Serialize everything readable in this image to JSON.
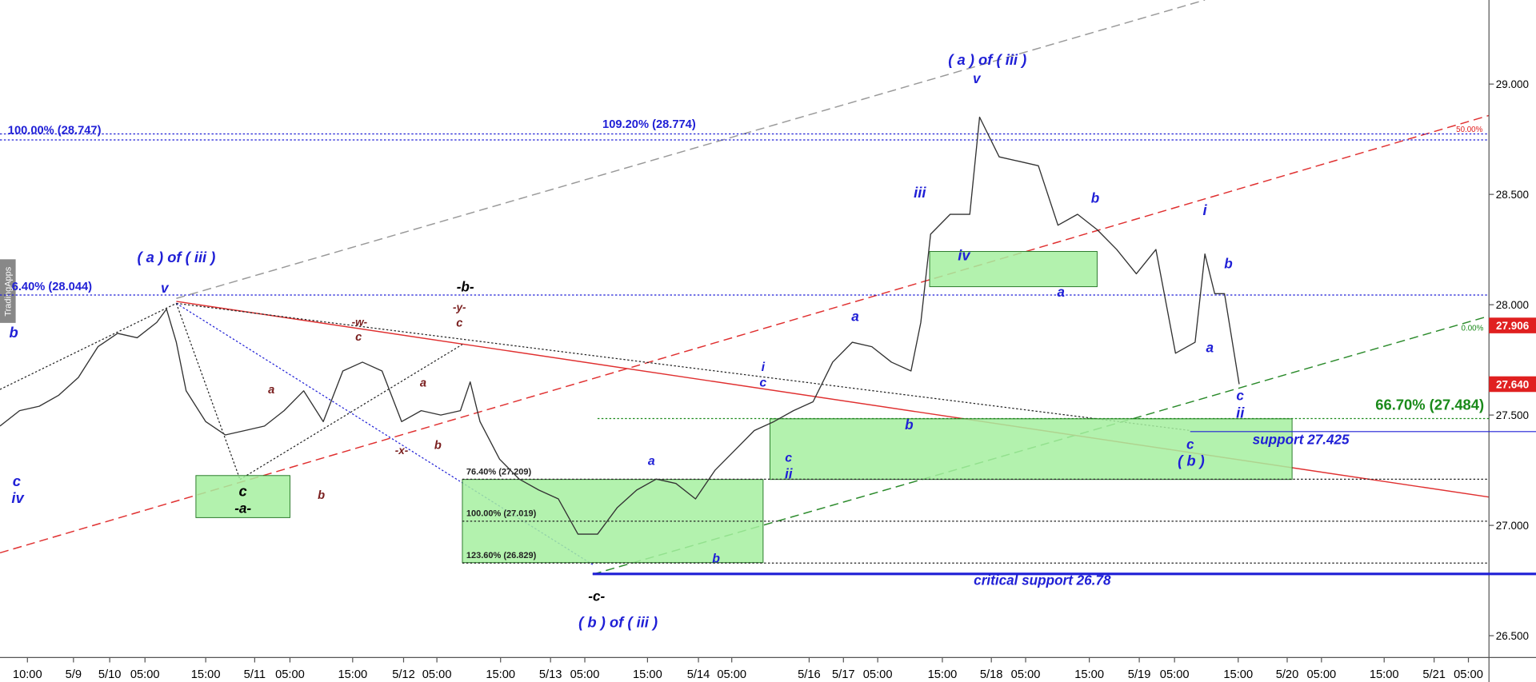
{
  "chart_data": {
    "type": "line",
    "xlim": [
      0,
      156.8
    ],
    "ylim": [
      26.401,
      29.381
    ],
    "xticks": [
      {
        "value": 2.8,
        "label": "10:00"
      },
      {
        "value": 7.5,
        "label": "5/9"
      },
      {
        "value": 11.2,
        "label": "5/10"
      },
      {
        "value": 14.8,
        "label": "05:00"
      },
      {
        "value": 21.0,
        "label": "15:00"
      },
      {
        "value": 26.0,
        "label": "5/11"
      },
      {
        "value": 29.6,
        "label": "05:00"
      },
      {
        "value": 36.0,
        "label": "15:00"
      },
      {
        "value": 41.2,
        "label": "5/12"
      },
      {
        "value": 44.6,
        "label": "05:00"
      },
      {
        "value": 51.1,
        "label": "15:00"
      },
      {
        "value": 56.2,
        "label": "5/13"
      },
      {
        "value": 59.7,
        "label": "05:00"
      },
      {
        "value": 66.1,
        "label": "15:00"
      },
      {
        "value": 71.3,
        "label": "5/14"
      },
      {
        "value": 74.7,
        "label": "05:00"
      },
      {
        "value": 82.6,
        "label": "5/16"
      },
      {
        "value": 86.1,
        "label": "5/17"
      },
      {
        "value": 89.6,
        "label": "05:00"
      },
      {
        "value": 96.2,
        "label": "15:00"
      },
      {
        "value": 101.2,
        "label": "5/18"
      },
      {
        "value": 104.7,
        "label": "05:00"
      },
      {
        "value": 111.2,
        "label": "15:00"
      },
      {
        "value": 116.3,
        "label": "5/19"
      },
      {
        "value": 119.9,
        "label": "05:00"
      },
      {
        "value": 126.4,
        "label": "15:00"
      },
      {
        "value": 131.4,
        "label": "5/20"
      },
      {
        "value": 134.9,
        "label": "05:00"
      },
      {
        "value": 141.3,
        "label": "15:00"
      },
      {
        "value": 146.4,
        "label": "5/21"
      },
      {
        "value": 149.9,
        "label": "05:00"
      }
    ],
    "yticks": [
      {
        "value": 26.5,
        "label": "26.500"
      },
      {
        "value": 27,
        "label": "27.000"
      },
      {
        "value": 27.5,
        "label": "27.500"
      },
      {
        "value": 28,
        "label": "28.000"
      },
      {
        "value": 28.5,
        "label": "28.500"
      },
      {
        "value": 29,
        "label": "29.000"
      }
    ],
    "series": [
      {
        "color": "#333333",
        "x": [
          0,
          2,
          4,
          6,
          8,
          10,
          12,
          14,
          16,
          17,
          18,
          19,
          21,
          23,
          25,
          27,
          29,
          31,
          33,
          35,
          37,
          39,
          41,
          43,
          45,
          47,
          48,
          49,
          51,
          53,
          55,
          57,
          59,
          61,
          63,
          65,
          67,
          69,
          71,
          73,
          75,
          77,
          79,
          81,
          83,
          85,
          87,
          89,
          91,
          93,
          94,
          95,
          97,
          99,
          100,
          102,
          104,
          106,
          108,
          110,
          112,
          114,
          116,
          118,
          120,
          122,
          123,
          124,
          125,
          126.5
        ],
        "values": [
          27.45,
          27.52,
          27.54,
          27.59,
          27.67,
          27.81,
          27.87,
          27.85,
          27.92,
          27.98,
          27.83,
          27.61,
          27.47,
          27.41,
          27.43,
          27.45,
          27.52,
          27.61,
          27.47,
          27.7,
          27.74,
          27.7,
          27.47,
          27.52,
          27.5,
          27.52,
          27.65,
          27.47,
          27.3,
          27.21,
          27.16,
          27.12,
          26.96,
          26.96,
          27.08,
          27.16,
          27.21,
          27.19,
          27.12,
          27.25,
          27.34,
          27.43,
          27.47,
          27.52,
          27.56,
          27.74,
          27.83,
          27.81,
          27.74,
          27.7,
          27.92,
          28.32,
          28.41,
          28.41,
          28.85,
          28.67,
          28.65,
          28.63,
          28.36,
          28.41,
          28.34,
          28.25,
          28.14,
          28.25,
          27.78,
          27.83,
          28.23,
          28.05,
          28.05,
          27.64
        ]
      }
    ],
    "levels": [
      {
        "label": "100.00% (28.747)",
        "value": 28.747,
        "color": "#1f1fd6"
      },
      {
        "label": "109.20% (28.774)",
        "value": 28.774,
        "color": "#1f1fd6"
      },
      {
        "label": "6.40% (28.044)",
        "value": 28.044,
        "color": "#1f1fd6"
      },
      {
        "label": "66.70% (27.484)",
        "value": 27.484,
        "color": "#1a8a1a"
      },
      {
        "label": "support 27.425",
        "value": 27.425,
        "color": "#1f1fd6"
      },
      {
        "label": "critical support 26.78",
        "value": 26.78,
        "color": "#1f1fd6"
      },
      {
        "label": "76.40% (27.209)",
        "value": 27.209,
        "color": "#222222"
      },
      {
        "label": "100.00% (27.019)",
        "value": 27.019,
        "color": "#222222"
      },
      {
        "label": "123.60% (26.829)",
        "value": 26.829,
        "color": "#222222"
      }
    ],
    "price_tags": [
      {
        "value": 27.906,
        "color": "#e02020"
      },
      {
        "value": 27.64,
        "label": "27.640",
        "color": "#e02020"
      }
    ],
    "watermark": "TradingApps",
    "annotations": [
      {
        "text": "( a ) of ( iii )",
        "color": "#1f1fd6"
      },
      {
        "text": "v",
        "color": "#1f1fd6"
      },
      {
        "text": "b",
        "color": "#1f1fd6"
      },
      {
        "text": "c",
        "color": "#1f1fd6"
      },
      {
        "text": "iv",
        "color": "#1f1fd6"
      },
      {
        "text": "( a ) of ( iii )",
        "color": "#1f1fd6"
      },
      {
        "text": "v",
        "color": "#1f1fd6"
      },
      {
        "text": "iii",
        "color": "#1f1fd6"
      },
      {
        "text": "iv",
        "color": "#1f1fd6"
      },
      {
        "text": "a",
        "color": "#1f1fd6"
      },
      {
        "text": "b",
        "color": "#1f1fd6"
      },
      {
        "text": "i",
        "color": "#1f1fd6"
      },
      {
        "text": "b",
        "color": "#1f1fd6"
      },
      {
        "text": "a",
        "color": "#1f1fd6"
      },
      {
        "text": "c",
        "color": "#1f1fd6"
      },
      {
        "text": "ii",
        "color": "#1f1fd6"
      },
      {
        "text": "c",
        "color": "#1f1fd6"
      },
      {
        "text": "( b )",
        "color": "#1f1fd6"
      },
      {
        "text": "a",
        "color": "#1f1fd6"
      },
      {
        "text": "b",
        "color": "#1f1fd6"
      },
      {
        "text": "i",
        "color": "#1f1fd6"
      },
      {
        "text": "c",
        "color": "#1f1fd6"
      },
      {
        "text": "c",
        "color": "#1f1fd6"
      },
      {
        "text": "ii",
        "color": "#1f1fd6"
      },
      {
        "text": "a",
        "color": "#1f1fd6"
      },
      {
        "text": "b",
        "color": "#1f1fd6"
      },
      {
        "text": "( b ) of ( iii )",
        "color": "#1f1fd6"
      },
      {
        "text": "-b-",
        "color": "#000000"
      },
      {
        "text": "c",
        "color": "#000000"
      },
      {
        "text": "-a-",
        "color": "#000000"
      },
      {
        "text": "-c-",
        "color": "#000000"
      },
      {
        "text": "-w-",
        "color": "#7a1f1f"
      },
      {
        "text": "c",
        "color": "#7a1f1f"
      },
      {
        "text": "-y-",
        "color": "#7a1f1f"
      },
      {
        "text": "c",
        "color": "#7a1f1f"
      },
      {
        "text": "a",
        "color": "#7a1f1f"
      },
      {
        "text": "b",
        "color": "#7a1f1f"
      },
      {
        "text": "a",
        "color": "#7a1f1f"
      },
      {
        "text": "-x-",
        "color": "#7a1f1f"
      },
      {
        "text": "b",
        "color": "#7a1f1f"
      },
      {
        "text": "0.00%",
        "color": "#1a8a1a"
      },
      {
        "text": "50.00%",
        "color": "#e02020"
      }
    ]
  }
}
